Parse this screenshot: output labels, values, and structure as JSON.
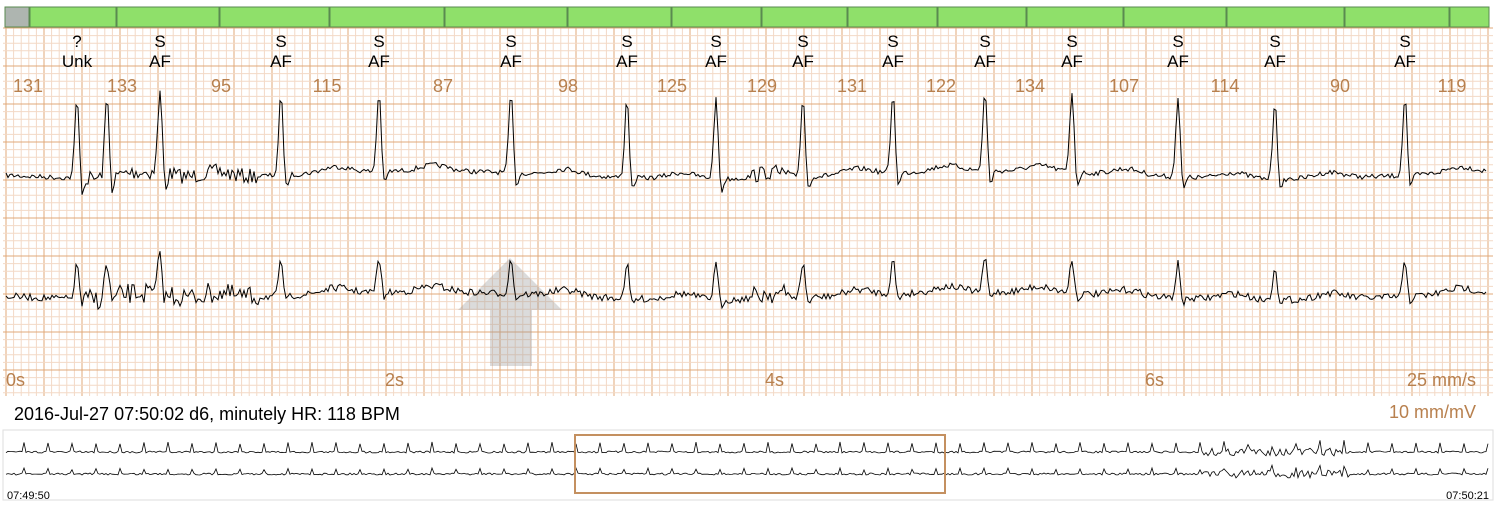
{
  "beats": [
    {
      "type": "?",
      "label": "Unk"
    },
    {
      "type": "S",
      "label": "AF"
    },
    {
      "type": "S",
      "label": "AF"
    },
    {
      "type": "S",
      "label": "AF"
    },
    {
      "type": "S",
      "label": "AF"
    },
    {
      "type": "S",
      "label": "AF"
    },
    {
      "type": "S",
      "label": "AF"
    },
    {
      "type": "S",
      "label": "AF"
    },
    {
      "type": "S",
      "label": "AF"
    },
    {
      "type": "S",
      "label": "AF"
    },
    {
      "type": "S",
      "label": "AF"
    },
    {
      "type": "S",
      "label": "AF"
    },
    {
      "type": "S",
      "label": "AF"
    },
    {
      "type": "S",
      "label": "AF"
    }
  ],
  "heart_rates": [
    131,
    133,
    95,
    115,
    87,
    98,
    125,
    129,
    131,
    122,
    134,
    107,
    114,
    90,
    119
  ],
  "time_marks": [
    "0s",
    "2s",
    "4s",
    "6s"
  ],
  "speed": "25 mm/s",
  "gain": "10 mm/mV",
  "info": "2016-Jul-27 07:50:02 d6, minutely HR: 118 BPM",
  "overview": {
    "start": "07:49:50",
    "end": "07:50:21"
  }
}
